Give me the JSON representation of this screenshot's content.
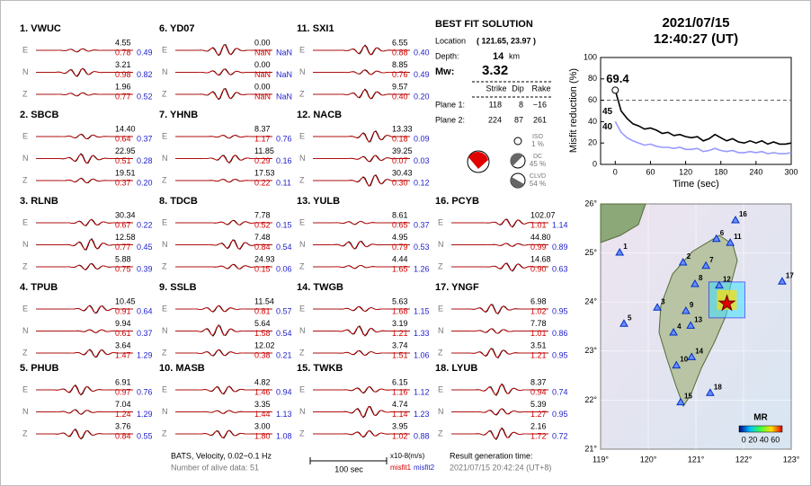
{
  "components": [
    "E",
    "N",
    "Z"
  ],
  "stations": [
    {
      "title": "1.  VWUC",
      "rows": [
        [
          "4.55",
          "0.78",
          "0.49"
        ],
        [
          "3.21",
          "0.98",
          "0.82"
        ],
        [
          "1.96",
          "0.77",
          "0.52"
        ]
      ]
    },
    {
      "title": "2.  SBCB",
      "rows": [
        [
          "14.40",
          "0.64",
          "0.37"
        ],
        [
          "22.95",
          "0.51",
          "0.28"
        ],
        [
          "19.51",
          "0.37",
          "0.20"
        ]
      ]
    },
    {
      "title": "3.  RLNB",
      "rows": [
        [
          "30.34",
          "0.67",
          "0.22"
        ],
        [
          "12.58",
          "0.77",
          "0.45"
        ],
        [
          "5.88",
          "0.75",
          "0.39"
        ]
      ]
    },
    {
      "title": "4.  TPUB",
      "rows": [
        [
          "10.45",
          "0.91",
          "0.64"
        ],
        [
          "9.94",
          "0.61",
          "0.37"
        ],
        [
          "3.64",
          "1.47",
          "1.29"
        ]
      ]
    },
    {
      "title": "5.  PHUB",
      "rows": [
        [
          "6.91",
          "0.97",
          "0.76"
        ],
        [
          "7.04",
          "1.24",
          "1.29"
        ],
        [
          "3.76",
          "0.84",
          "0.55"
        ]
      ]
    },
    {
      "title": "6.  YD07",
      "rows": [
        [
          "0.00",
          "NaN",
          "NaN"
        ],
        [
          "0.00",
          "NaN",
          "NaN"
        ],
        [
          "0.00",
          "NaN",
          "NaN"
        ]
      ]
    },
    {
      "title": "7.  YHNB",
      "rows": [
        [
          "8.37",
          "1.17",
          "0.76"
        ],
        [
          "11.85",
          "0.29",
          "0.16"
        ],
        [
          "17.53",
          "0.22",
          "0.11"
        ]
      ]
    },
    {
      "title": "8.  TDCB",
      "rows": [
        [
          "7.78",
          "0.52",
          "0.15"
        ],
        [
          "7.48",
          "0.84",
          "0.54"
        ],
        [
          "24.93",
          "0.15",
          "0.06"
        ]
      ]
    },
    {
      "title": "9.  SSLB",
      "rows": [
        [
          "11.54",
          "0.81",
          "0.57"
        ],
        [
          "5.64",
          "1.58",
          "0.54"
        ],
        [
          "12.02",
          "0.38",
          "0.21"
        ]
      ]
    },
    {
      "title": "10.  MASB",
      "rows": [
        [
          "4.82",
          "1.46",
          "0.94"
        ],
        [
          "3.35",
          "1.44",
          "1.13"
        ],
        [
          "3.00",
          "1.80",
          "1.08"
        ]
      ]
    },
    {
      "title": "11.  SXI1",
      "rows": [
        [
          "6.55",
          "0.88",
          "0.40"
        ],
        [
          "8.85",
          "0.76",
          "0.49"
        ],
        [
          "9.57",
          "0.40",
          "0.20"
        ]
      ]
    },
    {
      "title": "12.  NACB",
      "rows": [
        [
          "13.33",
          "0.18",
          "0.09"
        ],
        [
          "39.25",
          "0.07",
          "0.03"
        ],
        [
          "30.43",
          "0.30",
          "0.12"
        ]
      ]
    },
    {
      "title": "13.  YULB",
      "rows": [
        [
          "8.61",
          "0.65",
          "0.37"
        ],
        [
          "4.95",
          "0.79",
          "0.53"
        ],
        [
          "4.44",
          "1.65",
          "1.26"
        ]
      ]
    },
    {
      "title": "14.  TWGB",
      "rows": [
        [
          "5.63",
          "1.68",
          "1.15"
        ],
        [
          "3.19",
          "1.21",
          "1.33"
        ],
        [
          "3.74",
          "1.51",
          "1.06"
        ]
      ]
    },
    {
      "title": "15.  TWKB",
      "rows": [
        [
          "6.15",
          "1.16",
          "1.12"
        ],
        [
          "4.74",
          "1.14",
          "1.23"
        ],
        [
          "3.95",
          "1.02",
          "0.88"
        ]
      ]
    },
    {
      "title": "16.  PCYB",
      "rows": [
        [
          "102.07",
          "1.01",
          "1.14"
        ],
        [
          "44.80",
          "0.99",
          "0.89"
        ],
        [
          "14.68",
          "0.90",
          "0.63"
        ]
      ]
    },
    {
      "title": "17.  YNGF",
      "rows": [
        [
          "6.98",
          "1.02",
          "0.95"
        ],
        [
          "7.78",
          "1.01",
          "0.86"
        ],
        [
          "3.51",
          "1.21",
          "0.95"
        ]
      ]
    },
    {
      "title": "18.  LYUB",
      "rows": [
        [
          "8.37",
          "0.94",
          "0.74"
        ],
        [
          "5.39",
          "1.27",
          "0.95"
        ],
        [
          "2.16",
          "1.72",
          "0.72"
        ]
      ]
    }
  ],
  "solution": {
    "title": "BEST FIT SOLUTION",
    "location_label": "Location",
    "location": "( 121.65, 23.97 )",
    "depth_label": "Depth:",
    "depth": "14",
    "depth_unit": "km",
    "mw_label": "Mw:",
    "mw": "3.32",
    "headers": [
      "Strike",
      "Dip",
      "Rake"
    ],
    "planes": [
      [
        "Plane 1:",
        "118",
        "8",
        "−16"
      ],
      [
        "Plane 2:",
        "224",
        "87",
        "261"
      ]
    ],
    "components": [
      [
        "ISO",
        "1 %"
      ],
      [
        "DC",
        "45 %"
      ],
      [
        "CLVD",
        "54 %"
      ]
    ]
  },
  "footer": {
    "filter": "BATS, Velocity, 0.02~0.1 Hz",
    "alive": "Number of alive data: 51",
    "scale": "100 sec",
    "unit": "x10-8(m/s)",
    "misfit1": "misfit1",
    "misfit2": "misfit2",
    "gen_label": "Result generation time:",
    "gen_time": "2021/07/15 20:42:24 (UT+8)"
  },
  "header": {
    "date": "2021/07/15",
    "time": "12:40:27  (UT)"
  },
  "chart_data": {
    "type": "line",
    "ylabel": "Misfit reduction (%)",
    "xlabel": "Time (sec)",
    "x": [
      0,
      10,
      20,
      30,
      40,
      50,
      60,
      70,
      80,
      90,
      100,
      110,
      120,
      130,
      140,
      150,
      160,
      170,
      180,
      190,
      200,
      210,
      220,
      230,
      240,
      250,
      260,
      270,
      280,
      290,
      300
    ],
    "series": [
      {
        "color": "#000000",
        "values": [
          69.4,
          50,
          43,
          38,
          36,
          33,
          34,
          32,
          29,
          30,
          27,
          28,
          26,
          25,
          26,
          22,
          24,
          28,
          25,
          22,
          24,
          21,
          20,
          22,
          20,
          22,
          19,
          21,
          19,
          19,
          20
        ]
      },
      {
        "color": "#9999ff",
        "values": [
          40,
          30,
          25,
          22,
          20,
          18,
          19,
          17,
          16,
          16,
          15,
          16,
          14,
          14,
          15,
          12,
          13,
          15,
          13,
          12,
          13,
          11,
          11,
          12,
          11,
          12,
          10,
          11,
          10,
          10,
          11
        ]
      }
    ],
    "annotations": [
      {
        "text": "69.4",
        "color": "#e00000"
      },
      {
        "text": "45",
        "color": "#999999"
      },
      {
        "text": "40",
        "color": "#9999ff"
      }
    ],
    "reference_line": 60,
    "xlim": [
      -25,
      300
    ],
    "ylim": [
      0,
      100
    ],
    "xticks": [
      0,
      60,
      120,
      180,
      240,
      300
    ],
    "yticks": [
      0,
      20,
      40,
      60,
      80,
      100
    ]
  },
  "map": {
    "xlim": [
      119,
      123
    ],
    "ylim": [
      21,
      26
    ],
    "xticks": [
      {
        "value": 119,
        "label": "119°"
      },
      {
        "value": 120,
        "label": "120°"
      },
      {
        "value": 121,
        "label": "121°"
      },
      {
        "value": 122,
        "label": "122°"
      },
      {
        "value": 123,
        "label": "123°"
      }
    ],
    "yticks": [
      {
        "value": 21,
        "label": "21°"
      },
      {
        "value": 22,
        "label": "22°"
      },
      {
        "value": 23,
        "label": "23°"
      },
      {
        "value": 24,
        "label": "24°"
      },
      {
        "value": 25,
        "label": "25°"
      },
      {
        "value": 26,
        "label": "26°"
      }
    ],
    "epicenter": [
      121.65,
      23.97
    ],
    "stations": [
      {
        "label": "1",
        "lon": 119.4,
        "lat": 25.01
      },
      {
        "label": "2",
        "lon": 120.73,
        "lat": 24.81
      },
      {
        "label": "3",
        "lon": 120.19,
        "lat": 23.89
      },
      {
        "label": "4",
        "lon": 120.53,
        "lat": 23.38
      },
      {
        "label": "5",
        "lon": 119.49,
        "lat": 23.56
      },
      {
        "label": "6",
        "lon": 121.43,
        "lat": 25.29
      },
      {
        "label": "7",
        "lon": 121.21,
        "lat": 24.74
      },
      {
        "label": "8",
        "lon": 120.98,
        "lat": 24.37
      },
      {
        "label": "9",
        "lon": 120.79,
        "lat": 23.82
      },
      {
        "label": "10",
        "lon": 120.59,
        "lat": 22.71
      },
      {
        "label": "11",
        "lon": 121.72,
        "lat": 25.21
      },
      {
        "label": "12",
        "lon": 121.49,
        "lat": 24.34
      },
      {
        "label": "13",
        "lon": 120.89,
        "lat": 23.52
      },
      {
        "label": "14",
        "lon": 120.91,
        "lat": 22.88
      },
      {
        "label": "15",
        "lon": 120.68,
        "lat": 21.96
      },
      {
        "label": "16",
        "lon": 121.83,
        "lat": 25.67
      },
      {
        "label": "17",
        "lon": 122.81,
        "lat": 24.42
      },
      {
        "label": "18",
        "lon": 121.3,
        "lat": 22.15
      }
    ],
    "colorbar_title": "MR",
    "colorbar_labels": "0 20 40 60"
  }
}
